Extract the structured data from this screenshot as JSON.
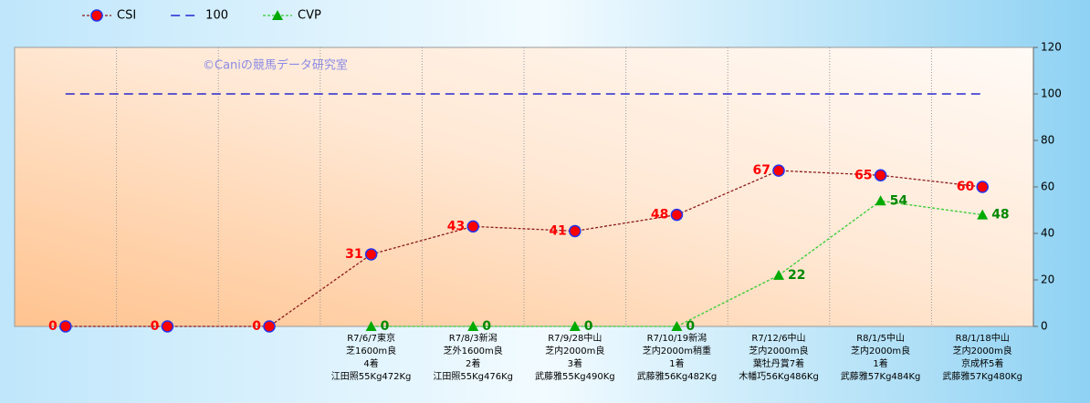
{
  "chart_data": {
    "type": "line",
    "watermark": "©Caniの競馬データ研究室",
    "categories": [
      null,
      null,
      null,
      [
        "R7/6/7東京",
        "芝1600m良",
        "4着",
        "江田照55Kg472Kg"
      ],
      [
        "R7/8/3新潟",
        "芝外1600m良",
        "2着",
        "江田照55Kg476Kg"
      ],
      [
        "R7/9/28中山",
        "芝内2000m良",
        "3着",
        "武藤雅55Kg490Kg"
      ],
      [
        "R7/10/19新潟",
        "芝内2000m稍重",
        "1着",
        "武藤雅56Kg482Kg"
      ],
      [
        "R7/12/6中山",
        "芝内2000m良",
        "葉牡丹賞7着",
        "木幡巧56Kg486Kg"
      ],
      [
        "R8/1/5中山",
        "芝内2000m良",
        "1着",
        "武藤雅57Kg484Kg"
      ],
      [
        "R8/1/18中山",
        "芝内2000m良",
        "京成杯5着",
        "武藤雅57Kg480Kg"
      ]
    ],
    "series": [
      {
        "name": "CSI",
        "color": "#8b1a1a",
        "marker": "circle",
        "marker_color": "#ff0000",
        "line_style": "dotted",
        "label_color": "#ff0000",
        "label_side": "left",
        "values": [
          0,
          0,
          0,
          31,
          43,
          41,
          48,
          67,
          65,
          60
        ]
      },
      {
        "name": "100",
        "color": "#0000cc",
        "marker": "none",
        "line_style": "dashed",
        "values": [
          100,
          100,
          100,
          100,
          100,
          100,
          100,
          100,
          100,
          100
        ]
      },
      {
        "name": "CVP",
        "color": "#33cc33",
        "marker": "triangle",
        "marker_color": "#00aa00",
        "line_style": "dotted",
        "label_color": "#008800",
        "label_side": "right",
        "values": [
          null,
          null,
          null,
          0,
          0,
          0,
          0,
          22,
          54,
          48
        ]
      }
    ],
    "ylim": [
      0,
      120
    ],
    "yticks": [
      0,
      20,
      40,
      60,
      80,
      100,
      120
    ],
    "y_axis_side": "right",
    "grid": "x"
  }
}
